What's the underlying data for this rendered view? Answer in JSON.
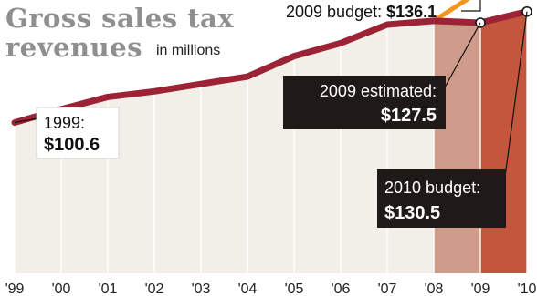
{
  "chart_data": {
    "type": "line",
    "title_line1": "Gross sales tax",
    "title_line2": "revenues",
    "units": "in millions",
    "categories": [
      "'99",
      "'00",
      "'01",
      "'02",
      "'03",
      "'04",
      "'05",
      "'06",
      "'07",
      "'08",
      "'09",
      "'10"
    ],
    "series": [
      {
        "values": [
          100.6,
          104.2,
          107.5,
          109.0,
          111.0,
          113.0,
          118.5,
          122.0,
          127.0,
          128.0,
          127.5,
          130.5
        ]
      },
      {
        "values": [
          null,
          null,
          null,
          null,
          null,
          null,
          null,
          null,
          null,
          128.0,
          136.1,
          null
        ]
      }
    ],
    "ylim": [
      60,
      140
    ],
    "grid": "vertical",
    "annotations": {
      "budget_2009": {
        "label": "2009 budget: ",
        "value": "$136.1"
      },
      "start_1999": {
        "label": "1999:",
        "value": "$100.6"
      },
      "estimated_2009": {
        "label": "2009 estimated:",
        "value": "$127.5"
      },
      "budget_2010": {
        "label": "2010 budget:",
        "value": "$130.5"
      }
    },
    "colors": {
      "line": "#9b2335",
      "budget_line": "#f2961e",
      "area": "#f2efe8",
      "shade_2009": "#cf9b8a",
      "shade_2010": "#c4563e",
      "gridline": "#d8d4cc",
      "title": "#8f8f8f",
      "callout_dark": "#1f1a17"
    }
  }
}
